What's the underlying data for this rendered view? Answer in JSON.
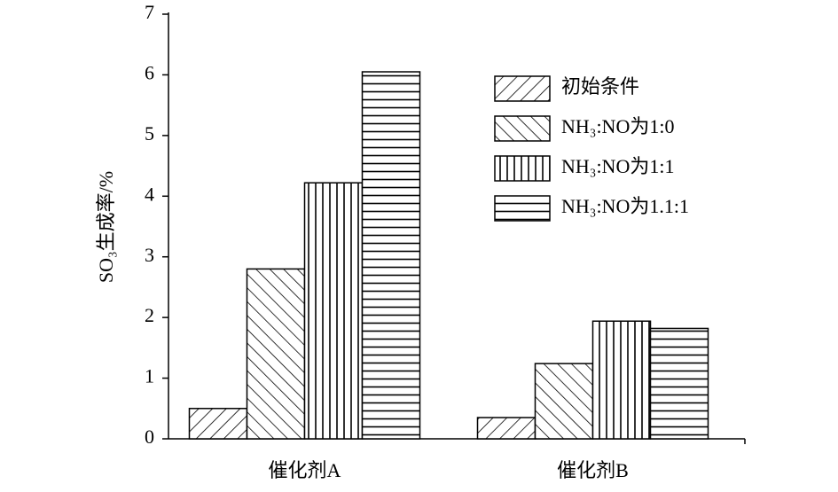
{
  "chart_data": {
    "type": "bar",
    "ylabel": "SO₃生成率/%",
    "categories": [
      "催化剂A",
      "催化剂B"
    ],
    "series": [
      {
        "name": "初始条件",
        "color": "#000000",
        "hatch": "/",
        "values": [
          0.5,
          0.35
        ]
      },
      {
        "name": "NH₃:NO为1:0",
        "color": "#000000",
        "hatch": "\\",
        "values": [
          2.8,
          1.24
        ]
      },
      {
        "name": "NH₃:NO为1:1",
        "color": "#000000",
        "hatch": "|",
        "values": [
          4.22,
          1.94
        ]
      },
      {
        "name": "NH₃:NO为1.1:1",
        "color": "#000000",
        "hatch": "-",
        "values": [
          6.05,
          1.82
        ]
      }
    ],
    "ylim": [
      0,
      7
    ],
    "yticks": [
      0,
      1,
      2,
      3,
      4,
      5,
      6,
      7
    ],
    "legend": "upper right"
  }
}
